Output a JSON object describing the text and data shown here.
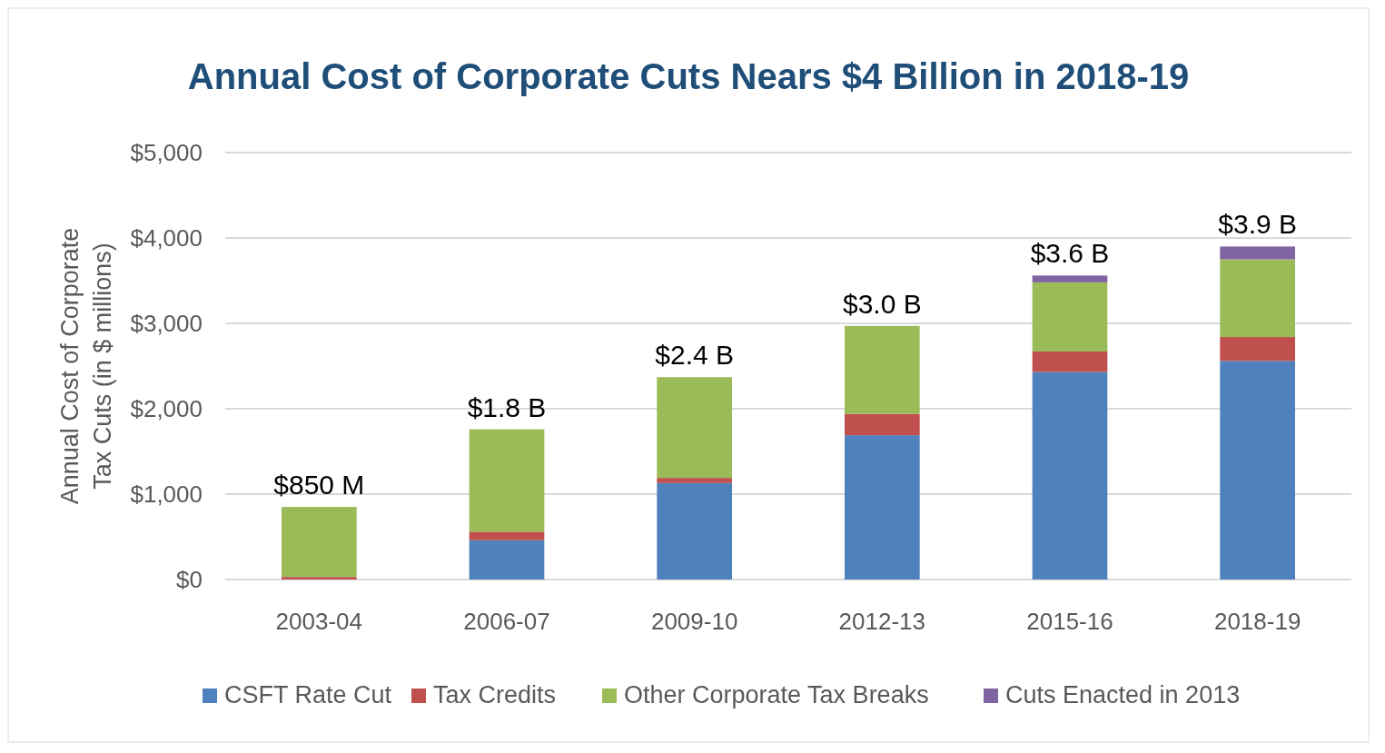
{
  "chart_data": {
    "type": "bar",
    "title": "Annual Cost of Corporate Cuts Nears $4 Billion in 2018-19",
    "ylabel": "Annual Cost of Corporate Tax Cuts (in $ millions)",
    "categories": [
      "2003-04",
      "2006-07",
      "2009-10",
      "2012-13",
      "2015-16",
      "2018-19"
    ],
    "series": [
      {
        "name": "CSFT Rate Cut",
        "color": "#4f81bd",
        "values": [
          0,
          460,
          1130,
          1690,
          2430,
          2560
        ]
      },
      {
        "name": "Tax Credits",
        "color": "#c0504d",
        "values": [
          30,
          100,
          60,
          250,
          240,
          280
        ]
      },
      {
        "name": "Other Corporate Tax Breaks",
        "color": "#9bbb59",
        "values": [
          820,
          1200,
          1180,
          1030,
          810,
          910
        ]
      },
      {
        "name": "Cuts Enacted in 2013",
        "color": "#8064a2",
        "values": [
          0,
          0,
          0,
          0,
          80,
          150
        ]
      }
    ],
    "stacked": true,
    "totals": [
      "$850 M",
      "$1.8 B",
      "$2.4 B",
      "$3.0 B",
      "$3.6 B",
      "$3.9 B"
    ],
    "ylim": [
      0,
      5000
    ],
    "yticks": [
      {
        "value": 0,
        "label": "$0"
      },
      {
        "value": 1000,
        "label": "$1,000"
      },
      {
        "value": 2000,
        "label": "$2,000"
      },
      {
        "value": 3000,
        "label": "$3,000"
      },
      {
        "value": 4000,
        "label": "$4,000"
      },
      {
        "value": 5000,
        "label": "$5,000"
      }
    ],
    "grid": "y",
    "legend": "bottom"
  }
}
